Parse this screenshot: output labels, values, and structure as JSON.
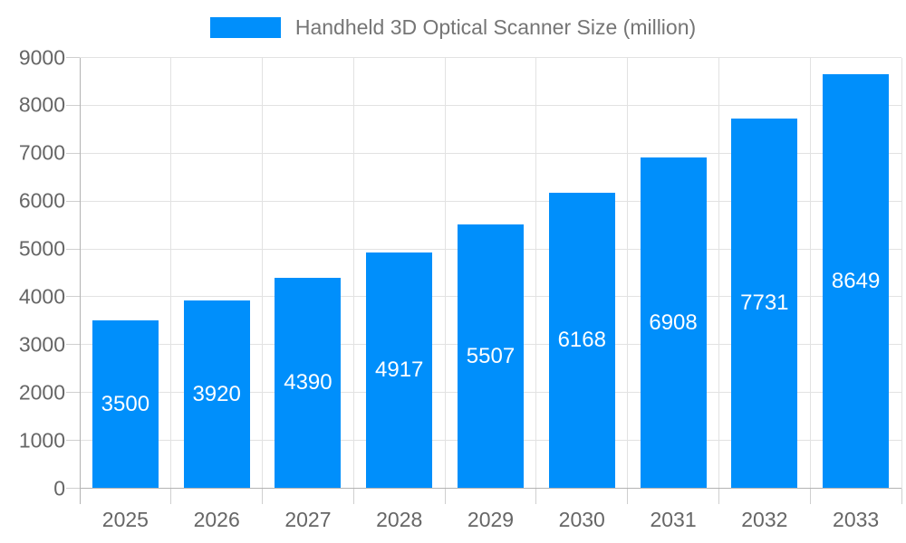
{
  "chart_data": {
    "type": "bar",
    "title": "Handheld 3D Optical Scanner Size (million)",
    "categories": [
      "2025",
      "2026",
      "2027",
      "2028",
      "2029",
      "2030",
      "2031",
      "2032",
      "2033"
    ],
    "values": [
      3500,
      3920,
      4390,
      4917,
      5507,
      6168,
      6908,
      7731,
      8649
    ],
    "data_labels": [
      "3500",
      "3920",
      "4390",
      "4917",
      "5507",
      "6168",
      "6908",
      "7731",
      "8649"
    ],
    "series_name": "Handheld 3D Optical Scanner Size (million)",
    "xlabel": "",
    "ylabel": "",
    "ylim": [
      0,
      9000
    ],
    "ytick_step": 1000,
    "ytick_labels": [
      "0",
      "1000",
      "2000",
      "3000",
      "4000",
      "5000",
      "6000",
      "7000",
      "8000",
      "9000"
    ],
    "grid": true,
    "legend_position": "top-center",
    "bar_label_position": "inside-center",
    "colors": {
      "bar": "#008FFB",
      "grid": "#e2e2e2",
      "axis_line": "#b3b3b3",
      "tick": "#cfcfcf",
      "axis_text": "#666666",
      "legend_text": "#757575",
      "bar_label_text": "#ffffff",
      "background": "#ffffff"
    }
  }
}
